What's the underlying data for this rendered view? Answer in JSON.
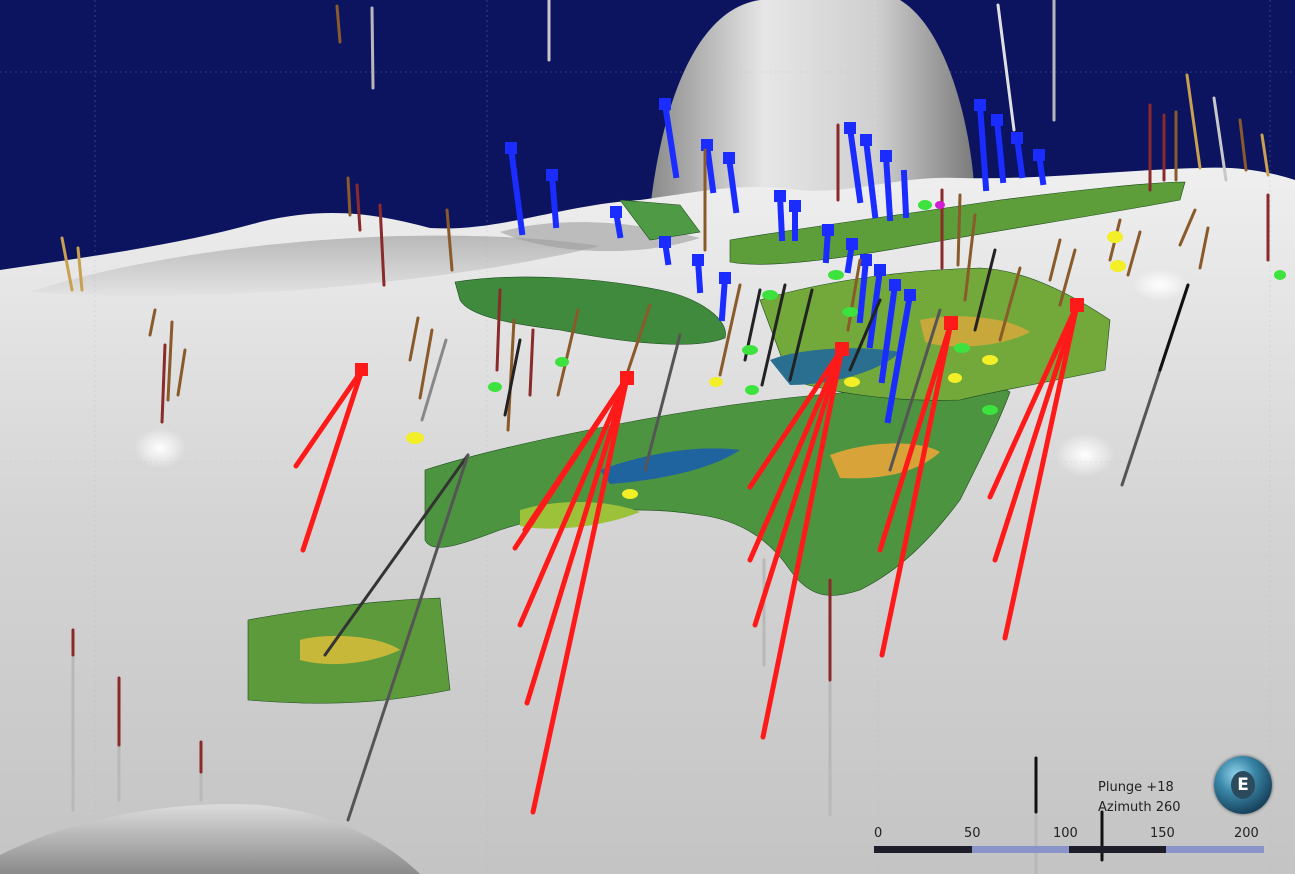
{
  "view": {
    "background_color": "#0c1460",
    "terrain_color": "#d6d6d6",
    "drillhole_colors": {
      "planned": "#ff1a1a",
      "existing": "#1a2cff",
      "trace": "#444444"
    },
    "block_model_colors": [
      "#2e7d32",
      "#6aa84f",
      "#a8c23a",
      "#d8b93a",
      "#2a6f8f",
      "#1b3f9a"
    ],
    "marker_color": "#f2ee28"
  },
  "orientation": {
    "plunge_label": "Plunge +18",
    "azimuth_label": "Azimuth 260"
  },
  "compass": {
    "letter": "E",
    "icon": "compass-globe-icon"
  },
  "scale_bar": {
    "ticks": [
      "0",
      "50",
      "100",
      "150",
      "200"
    ],
    "colors": [
      "#1e1e2a",
      "#8a94c8"
    ]
  }
}
